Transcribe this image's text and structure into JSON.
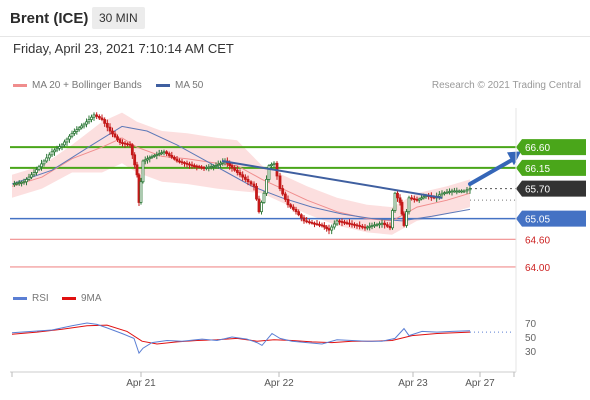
{
  "header": {
    "title": "Brent (ICE)",
    "interval": "30 MIN"
  },
  "datetime": "Friday, April 23, 2021 7:10:14 AM CET",
  "legend": {
    "items": [
      {
        "label": "MA 20 + Bollinger Bands",
        "color": "#f08d8d"
      },
      {
        "label": "MA 50",
        "color": "#3f5fa0"
      }
    ],
    "credit": "Research © 2021 Trading Central"
  },
  "rsi_legend": {
    "items": [
      {
        "label": "RSI",
        "color": "#5b7fd4"
      },
      {
        "label": "9MA",
        "color": "#e01010"
      }
    ]
  },
  "colors": {
    "resistance": "#4aa61a",
    "support_blue": "#4472c4",
    "support_red": "#f08d8d",
    "current": "#333333",
    "red_text": "#cc1f1f",
    "up": "#2f7a3a",
    "down": "#c41818"
  },
  "chart_data": [
    {
      "type": "line",
      "title": "Brent (ICE)",
      "interval": "30 MIN",
      "x_ticks": [
        "Apr 21",
        "Apr 22",
        "Apr 23",
        "Apr 27"
      ],
      "ylim": [
        63.5,
        67.45
      ],
      "levels": [
        {
          "value": 66.6,
          "label": "66.60",
          "kind": "resistance"
        },
        {
          "value": 66.15,
          "label": "66.15",
          "kind": "resistance"
        },
        {
          "value": 65.7,
          "label": "65.70",
          "kind": "current"
        },
        {
          "value": 65.05,
          "label": "65.05",
          "kind": "support"
        },
        {
          "value": 64.6,
          "label": "64.60",
          "kind": "support"
        },
        {
          "value": 64.0,
          "label": "64.00",
          "kind": "support"
        }
      ],
      "price_path": [
        [
          0,
          65.8
        ],
        [
          12,
          65.85
        ],
        [
          22,
          66.05
        ],
        [
          32,
          66.3
        ],
        [
          40,
          66.5
        ],
        [
          50,
          66.65
        ],
        [
          60,
          66.9
        ],
        [
          72,
          67.1
        ],
        [
          82,
          67.3
        ],
        [
          90,
          67.2
        ],
        [
          98,
          66.95
        ],
        [
          108,
          66.7
        ],
        [
          118,
          66.65
        ],
        [
          125,
          66.0
        ],
        [
          127,
          65.4
        ],
        [
          131,
          66.3
        ],
        [
          140,
          66.4
        ],
        [
          152,
          66.5
        ],
        [
          165,
          66.3
        ],
        [
          180,
          66.2
        ],
        [
          192,
          66.15
        ],
        [
          204,
          66.2
        ],
        [
          213,
          66.3
        ],
        [
          220,
          66.15
        ],
        [
          228,
          66.0
        ],
        [
          236,
          65.85
        ],
        [
          242,
          65.75
        ],
        [
          247,
          65.2
        ],
        [
          252,
          65.6
        ],
        [
          257,
          66.2
        ],
        [
          262,
          66.25
        ],
        [
          268,
          65.7
        ],
        [
          276,
          65.35
        ],
        [
          284,
          65.2
        ],
        [
          292,
          65.0
        ],
        [
          300,
          64.95
        ],
        [
          310,
          64.9
        ],
        [
          317,
          64.8
        ],
        [
          325,
          65.0
        ],
        [
          335,
          64.95
        ],
        [
          345,
          64.9
        ],
        [
          353,
          64.85
        ],
        [
          360,
          64.9
        ],
        [
          370,
          64.95
        ],
        [
          378,
          64.85
        ],
        [
          383,
          65.6
        ],
        [
          388,
          65.4
        ],
        [
          392,
          64.9
        ],
        [
          397,
          65.5
        ],
        [
          405,
          65.45
        ],
        [
          414,
          65.55
        ],
        [
          422,
          65.5
        ],
        [
          430,
          65.6
        ],
        [
          440,
          65.65
        ],
        [
          452,
          65.65
        ],
        [
          458,
          65.7
        ]
      ],
      "ma20_path": [
        [
          0,
          65.75
        ],
        [
          30,
          65.95
        ],
        [
          60,
          66.35
        ],
        [
          90,
          66.6
        ],
        [
          110,
          66.8
        ],
        [
          125,
          66.6
        ],
        [
          150,
          66.4
        ],
        [
          175,
          66.35
        ],
        [
          205,
          66.25
        ],
        [
          225,
          66.2
        ],
        [
          250,
          65.9
        ],
        [
          270,
          65.7
        ],
        [
          295,
          65.45
        ],
        [
          325,
          65.2
        ],
        [
          355,
          65.05
        ],
        [
          380,
          65.0
        ],
        [
          405,
          65.3
        ],
        [
          435,
          65.45
        ],
        [
          458,
          65.6
        ]
      ],
      "ma50_path": [
        [
          0,
          65.8
        ],
        [
          40,
          66.1
        ],
        [
          80,
          66.65
        ],
        [
          110,
          67.05
        ],
        [
          135,
          66.95
        ],
        [
          165,
          66.65
        ],
        [
          190,
          66.35
        ],
        [
          215,
          66.05
        ],
        [
          240,
          65.75
        ],
        [
          270,
          65.5
        ],
        [
          300,
          65.3
        ],
        [
          330,
          65.15
        ],
        [
          360,
          65.05
        ],
        [
          390,
          65.0
        ],
        [
          420,
          65.1
        ],
        [
          458,
          65.25
        ]
      ],
      "trendline": [
        [
          210,
          66.3
        ],
        [
          430,
          65.5
        ]
      ],
      "forecast": [
        [
          458,
          65.8
        ],
        [
          505,
          66.4
        ]
      ],
      "projection_y": 65.7
    },
    {
      "type": "line",
      "title": "RSI",
      "x_ticks": [
        "Apr 21",
        "Apr 22",
        "Apr 23",
        "Apr 27"
      ],
      "ylim": [
        20,
        80
      ],
      "yticks": [
        70,
        50,
        30
      ],
      "rsi": [
        [
          0,
          56
        ],
        [
          20,
          58
        ],
        [
          40,
          60
        ],
        [
          60,
          66
        ],
        [
          75,
          70
        ],
        [
          85,
          68
        ],
        [
          95,
          63
        ],
        [
          110,
          55
        ],
        [
          122,
          48
        ],
        [
          127,
          27
        ],
        [
          131,
          34
        ],
        [
          140,
          42
        ],
        [
          155,
          45
        ],
        [
          170,
          44
        ],
        [
          190,
          47
        ],
        [
          205,
          45
        ],
        [
          220,
          50
        ],
        [
          235,
          47
        ],
        [
          245,
          42
        ],
        [
          250,
          38
        ],
        [
          260,
          55
        ],
        [
          268,
          48
        ],
        [
          280,
          44
        ],
        [
          295,
          42
        ],
        [
          310,
          40
        ],
        [
          325,
          46
        ],
        [
          340,
          45
        ],
        [
          355,
          44
        ],
        [
          370,
          44
        ],
        [
          383,
          48
        ],
        [
          392,
          62
        ],
        [
          397,
          52
        ],
        [
          410,
          58
        ],
        [
          425,
          57
        ],
        [
          440,
          58
        ],
        [
          458,
          59
        ]
      ],
      "ma9": [
        [
          0,
          54
        ],
        [
          25,
          57
        ],
        [
          50,
          61
        ],
        [
          75,
          66
        ],
        [
          95,
          67
        ],
        [
          115,
          58
        ],
        [
          130,
          44
        ],
        [
          145,
          40
        ],
        [
          165,
          43
        ],
        [
          185,
          45
        ],
        [
          205,
          46
        ],
        [
          225,
          48
        ],
        [
          245,
          44
        ],
        [
          262,
          46
        ],
        [
          280,
          45
        ],
        [
          300,
          43
        ],
        [
          320,
          42
        ],
        [
          340,
          44
        ],
        [
          360,
          44
        ],
        [
          380,
          45
        ],
        [
          400,
          52
        ],
        [
          425,
          55
        ],
        [
          458,
          57
        ]
      ],
      "projection_y": 57
    }
  ]
}
